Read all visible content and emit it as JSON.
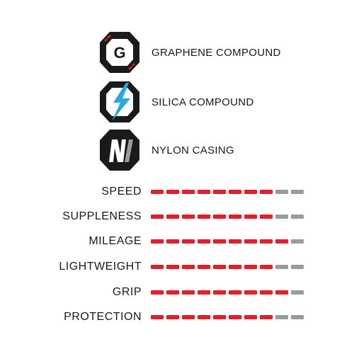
{
  "colors": {
    "accent_red": "#e21e2c",
    "inactive_gray": "#9b9b9b",
    "dark": "#1a1a1a",
    "silica_blue": "#2aa8e0"
  },
  "features": [
    {
      "icon": "graphene-compound-icon",
      "badge_letter": "G",
      "label": "GRAPHENE COMPOUND"
    },
    {
      "icon": "silica-compound-icon",
      "label": "SILICA COMPOUND"
    },
    {
      "icon": "nylon-casing-icon",
      "label": "NYLON CASING"
    }
  ],
  "ratings_scale_max": 10,
  "ratings": [
    {
      "label": "SPEED",
      "value": 8
    },
    {
      "label": "SUPPLENESS",
      "value": 8
    },
    {
      "label": "MILEAGE",
      "value": 9
    },
    {
      "label": "LIGHTWEIGHT",
      "value": 8
    },
    {
      "label": "GRIP",
      "value": 9
    },
    {
      "label": "PROTECTION",
      "value": 8
    }
  ]
}
